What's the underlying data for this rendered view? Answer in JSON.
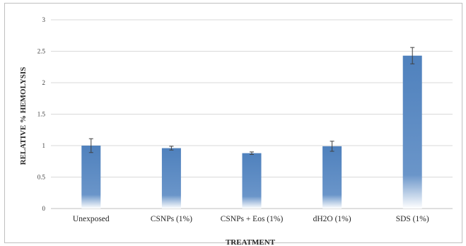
{
  "chart_data": {
    "type": "bar",
    "title": "",
    "xlabel": "TREATMENT",
    "ylabel": "RELATIVE % HEMOLYSIS",
    "categories": [
      "Unexposed",
      "CSNPs (1%)",
      "CSNPs + Eos  (1%)",
      "dH2O (1%)",
      "SDS (1%)"
    ],
    "series": [
      {
        "values": [
          1.0,
          0.96,
          0.88,
          0.99,
          2.43
        ],
        "errors": [
          0.11,
          0.03,
          0.02,
          0.08,
          0.13
        ]
      }
    ],
    "ylim": [
      0,
      3
    ],
    "yticks": [
      0,
      0.5,
      1,
      1.5,
      2,
      2.5,
      3
    ],
    "ytick_labels": [
      "0",
      "0.5",
      "1",
      "1.5",
      "2",
      "2.5",
      "3"
    ],
    "grid": true,
    "legend": "none",
    "bar_color": "#4f81bd"
  }
}
